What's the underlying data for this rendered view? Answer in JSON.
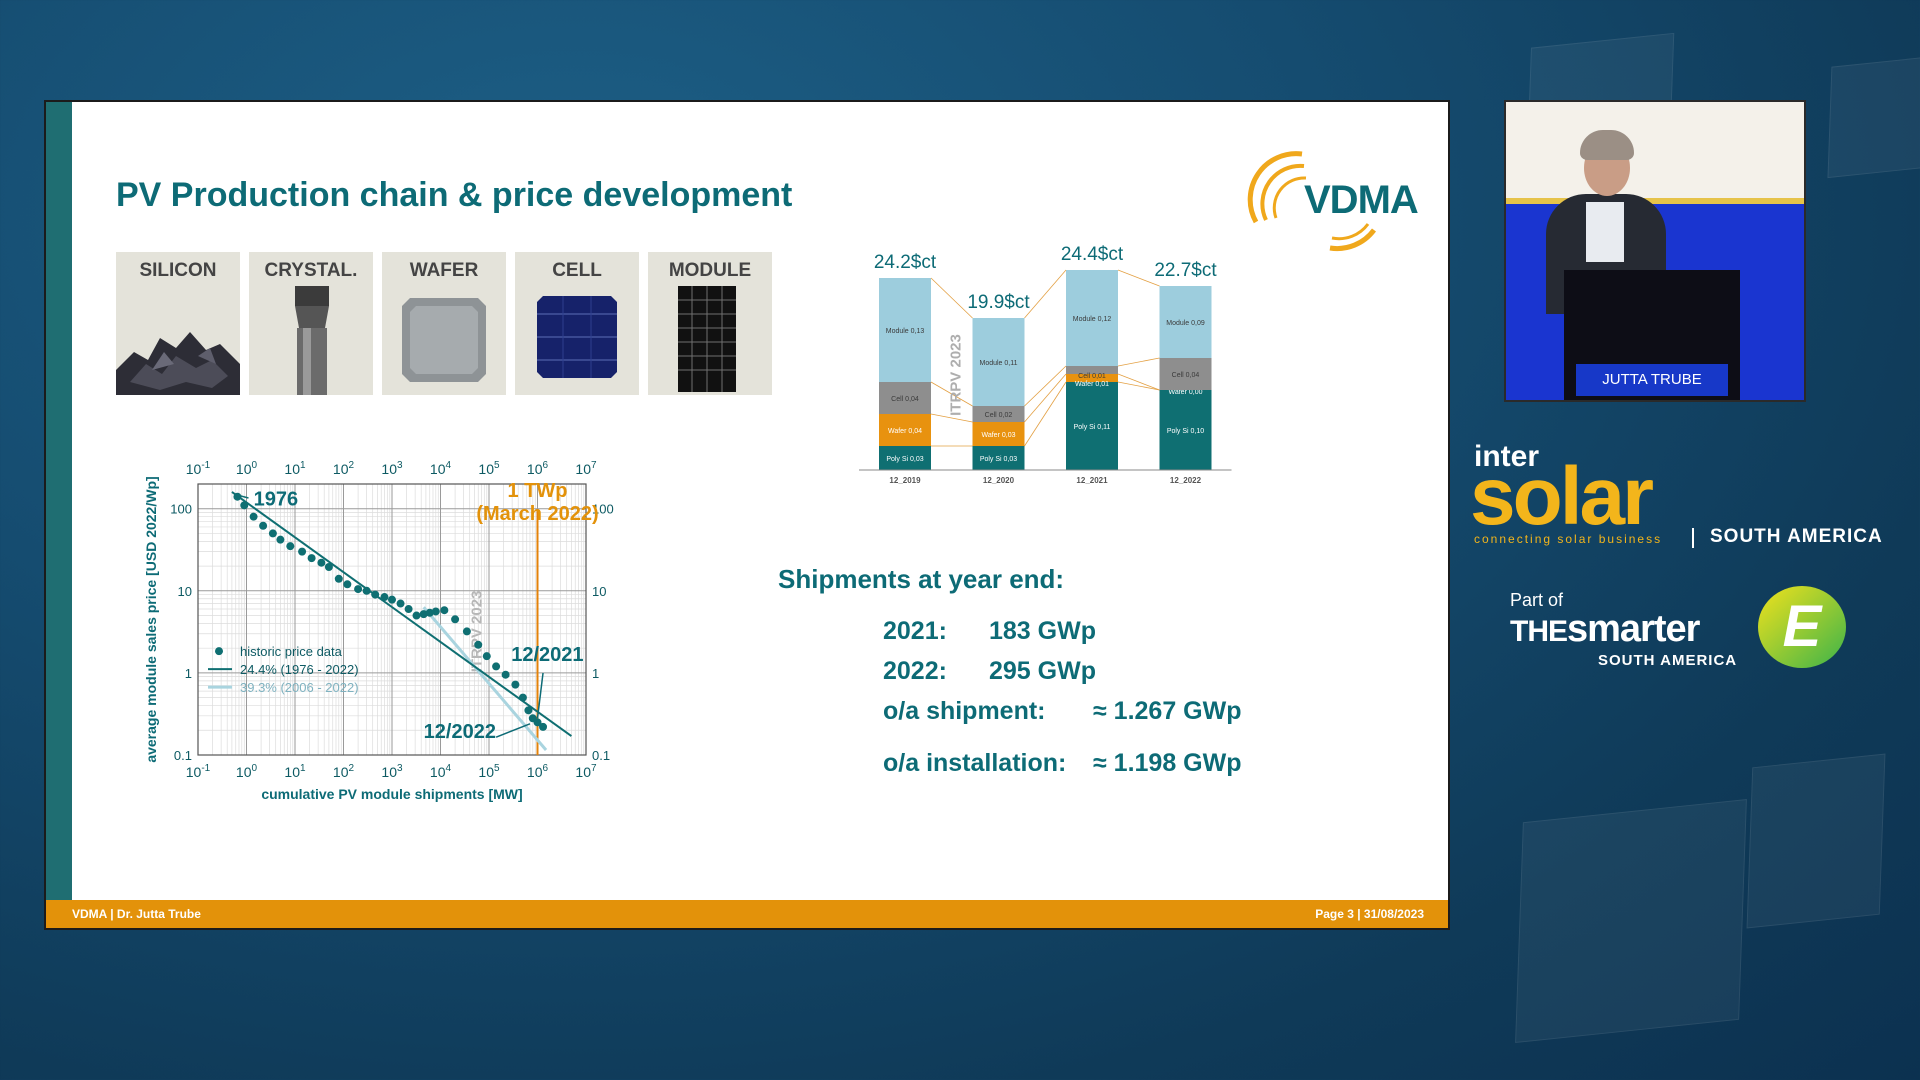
{
  "slide": {
    "title": "PV Production chain & price development",
    "logo_text": "VDMA",
    "chain": [
      "SILICON",
      "CRYSTAL.",
      "WAFER",
      "CELL",
      "MODULE"
    ],
    "footer_left": "VDMA | Dr. Jutta Trube",
    "footer_right": "Page 3 | 31/08/2023",
    "shipments": {
      "heading": "Shipments at year end:",
      "rows": [
        {
          "label": "2021:",
          "value": "183 GWp"
        },
        {
          "label": "2022:",
          "value": "295 GWp"
        },
        {
          "label": "o/a shipment:",
          "value": "≈ 1.267 GWp"
        },
        {
          "label": "o/a installation:",
          "value": "≈ 1.198 GWp"
        }
      ]
    }
  },
  "chart_data": [
    {
      "type": "scatter",
      "xlabel": "cumulative PV module shipments [MW]",
      "ylabel": "average module sales price [USD 2022/Wp]",
      "x_scale": "log",
      "y_scale": "log",
      "xlim": [
        0.1,
        10000000
      ],
      "ylim": [
        0.1,
        200
      ],
      "x_ticks": [
        "10-1",
        "100",
        "101",
        "102",
        "103",
        "104",
        "105",
        "106",
        "107"
      ],
      "y_ticks": [
        "100",
        "10",
        "1",
        "0.1"
      ],
      "grid": true,
      "legend": "bottom-left",
      "legend_entries": [
        "historic price data",
        "24.4% (1976 - 2022)",
        "39.3% (2006 - 2022)"
      ],
      "watermark": "ITRPV 2023",
      "annotations": [
        "1976",
        "1 TWp",
        "(March 2022)",
        "12/2021",
        "12/2022"
      ],
      "series": [
        {
          "name": "historic price data",
          "x": [
            0.65,
            0.9,
            1.4,
            2.2,
            3.5,
            5,
            8,
            14,
            22,
            35,
            50,
            80,
            120,
            200,
            300,
            450,
            700,
            1000,
            1500,
            2200,
            3200,
            4500,
            6000,
            8000,
            12000,
            20000,
            35000,
            60000,
            90000,
            140000,
            220000,
            350000,
            500000,
            650000,
            800000,
            1000000,
            1300000
          ],
          "y": [
            140,
            110,
            80,
            62,
            50,
            42,
            35,
            30,
            25,
            22,
            19.5,
            14,
            12,
            10.5,
            10,
            9,
            8.4,
            7.8,
            7,
            6,
            5,
            5.2,
            5.4,
            5.6,
            5.8,
            4.5,
            3.2,
            2.2,
            1.6,
            1.2,
            0.95,
            0.72,
            0.5,
            0.35,
            0.28,
            0.25,
            0.22
          ]
        },
        {
          "name": "24.4% (1976 - 2022)",
          "x": [
            0.5,
            5000000
          ],
          "y": [
            160,
            0.17
          ]
        },
        {
          "name": "39.3% (2006 - 2022)",
          "x": [
            4500,
            1500000
          ],
          "y": [
            6.3,
            0.115
          ]
        }
      ]
    },
    {
      "type": "bar",
      "stacked": true,
      "watermark": "ITRPV 2023",
      "categories": [
        "12_2019",
        "12_2020",
        "12_2021",
        "12_2022"
      ],
      "totals": [
        "24.2$ct",
        "19.9$ct",
        "24.4$ct",
        "22.7$ct"
      ],
      "series": [
        {
          "name": "Poly Si",
          "values": [
            0.03,
            0.03,
            0.11,
            0.1
          ],
          "labels": [
            "Poly Si 0,03",
            "Poly Si 0,03",
            "Poly Si 0,11",
            "Poly Si 0,10"
          ],
          "color": "#0f6f72"
        },
        {
          "name": "Wafer",
          "values": [
            0.04,
            0.03,
            0.01,
            0.0
          ],
          "labels": [
            "Wafer 0,04",
            "Wafer 0,03",
            "Wafer 0,01",
            "Wafer 0,00"
          ],
          "color": "#e8920f"
        },
        {
          "name": "Cell",
          "values": [
            0.04,
            0.02,
            0.01,
            0.04
          ],
          "labels": [
            "Cell 0,04",
            "Cell 0,02",
            "Cell 0,01",
            "Cell 0,04"
          ],
          "color": "#8e8e8e"
        },
        {
          "name": "Module",
          "values": [
            0.13,
            0.11,
            0.12,
            0.09
          ],
          "labels": [
            "Module 0,13",
            "Module 0,11",
            "Module 0,12",
            "Module 0,09"
          ],
          "color": "#9dcddd"
        }
      ]
    }
  ],
  "speaker": {
    "name_label": "JUTTA TRUBE"
  },
  "branding": {
    "inter": "inter",
    "solar": "solar",
    "tagline": "connecting solar business",
    "region": "SOUTH AMERICA",
    "part_of": "Part of",
    "the": "THE",
    "smarter": "smarter",
    "smarter_region": "SOUTH AMERICA",
    "e_letter": "E"
  },
  "colors": {
    "teal": "#0d6b76",
    "orange": "#e3920a",
    "light_blue": "#9dcddd",
    "grey": "#8e8e8e",
    "brand_yellow": "#f3b51b"
  }
}
